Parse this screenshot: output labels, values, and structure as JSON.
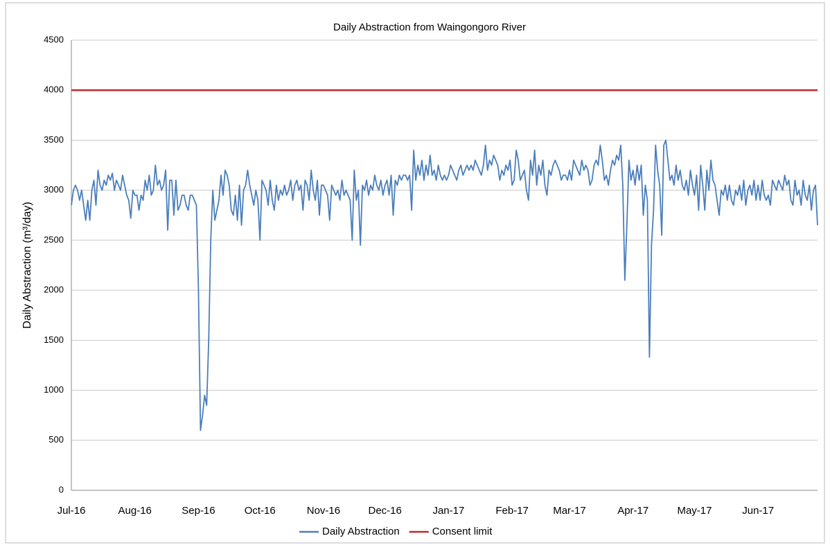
{
  "chart_data": {
    "type": "line",
    "title": "Daily Abstraction from Waingongoro River",
    "y_label": "Daily Abstraction (m³/day)",
    "categories": [
      "Jul-16",
      null,
      null,
      null,
      null,
      null,
      null,
      null,
      null,
      null,
      null,
      null,
      null,
      null,
      null,
      null,
      null,
      null,
      null,
      null,
      null,
      null,
      null,
      null,
      null,
      null,
      null,
      null,
      null,
      null,
      null,
      "Aug-16",
      null,
      null,
      null,
      null,
      null,
      null,
      null,
      null,
      null,
      null,
      null,
      null,
      null,
      null,
      null,
      null,
      null,
      null,
      null,
      null,
      null,
      null,
      null,
      null,
      null,
      null,
      null,
      null,
      null,
      null,
      "Sep-16",
      null,
      null,
      null,
      null,
      null,
      null,
      null,
      null,
      null,
      null,
      null,
      null,
      null,
      null,
      null,
      null,
      null,
      null,
      null,
      null,
      null,
      null,
      null,
      null,
      null,
      null,
      null,
      null,
      null,
      "Oct-16",
      null,
      null,
      null,
      null,
      null,
      null,
      null,
      null,
      null,
      null,
      null,
      null,
      null,
      null,
      null,
      null,
      null,
      null,
      null,
      null,
      null,
      null,
      null,
      null,
      null,
      null,
      null,
      null,
      null,
      null,
      "Nov-16",
      null,
      null,
      null,
      null,
      null,
      null,
      null,
      null,
      null,
      null,
      null,
      null,
      null,
      null,
      null,
      null,
      null,
      null,
      null,
      null,
      null,
      null,
      null,
      null,
      null,
      null,
      null,
      null,
      null,
      "Dec-16",
      null,
      null,
      null,
      null,
      null,
      null,
      null,
      null,
      null,
      null,
      null,
      null,
      null,
      null,
      null,
      null,
      null,
      null,
      null,
      null,
      null,
      null,
      null,
      null,
      null,
      null,
      null,
      null,
      null,
      null,
      "Jan-17",
      null,
      null,
      null,
      null,
      null,
      null,
      null,
      null,
      null,
      null,
      null,
      null,
      null,
      null,
      null,
      null,
      null,
      null,
      null,
      null,
      null,
      null,
      null,
      null,
      null,
      null,
      null,
      null,
      null,
      null,
      "Feb-17",
      null,
      null,
      null,
      null,
      null,
      null,
      null,
      null,
      null,
      null,
      null,
      null,
      null,
      null,
      null,
      null,
      null,
      null,
      null,
      null,
      null,
      null,
      null,
      null,
      null,
      null,
      null,
      "Mar-17",
      null,
      null,
      null,
      null,
      null,
      null,
      null,
      null,
      null,
      null,
      null,
      null,
      null,
      null,
      null,
      null,
      null,
      null,
      null,
      null,
      null,
      null,
      null,
      null,
      null,
      null,
      null,
      null,
      null,
      null,
      "Apr-17",
      null,
      null,
      null,
      null,
      null,
      null,
      null,
      null,
      null,
      null,
      null,
      null,
      null,
      null,
      null,
      null,
      null,
      null,
      null,
      null,
      null,
      null,
      null,
      null,
      null,
      null,
      null,
      null,
      null,
      "May-17",
      null,
      null,
      null,
      null,
      null,
      null,
      null,
      null,
      null,
      null,
      null,
      null,
      null,
      null,
      null,
      null,
      null,
      null,
      null,
      null,
      null,
      null,
      null,
      null,
      null,
      null,
      null,
      null,
      null,
      null,
      "Jun-17",
      null,
      null,
      null,
      null,
      null,
      null,
      null,
      null,
      null,
      null,
      null,
      null,
      null,
      null,
      null,
      null,
      null,
      null,
      null,
      null,
      null,
      null,
      null,
      null,
      null,
      null,
      null,
      null,
      null
    ],
    "series": [
      {
        "name": "Daily Abstraction",
        "color": "#4a7ebb",
        "values": [
          2850,
          3000,
          3050,
          3000,
          2900,
          3000,
          2850,
          2700,
          2900,
          2700,
          3000,
          3100,
          2850,
          3200,
          3050,
          3000,
          3100,
          3050,
          3150,
          3100,
          3170,
          3000,
          3100,
          3050,
          3000,
          3150,
          3050,
          2950,
          2900,
          2720,
          3000,
          2950,
          2950,
          2800,
          2950,
          2900,
          3100,
          3000,
          3150,
          2950,
          3000,
          3250,
          3050,
          3100,
          3000,
          3050,
          3200,
          2600,
          3100,
          3100,
          2750,
          3100,
          2800,
          2850,
          2950,
          2950,
          2850,
          2800,
          2950,
          2950,
          2900,
          2850,
          2000,
          600,
          750,
          950,
          850,
          1500,
          2500,
          3000,
          2700,
          2800,
          2900,
          3150,
          2950,
          3200,
          3150,
          3050,
          2800,
          2750,
          2950,
          2700,
          3050,
          2650,
          3000,
          3050,
          3200,
          3050,
          2950,
          2850,
          3000,
          2900,
          2500,
          3100,
          3050,
          3000,
          2850,
          3100,
          2900,
          2800,
          3050,
          2900,
          3000,
          2950,
          3050,
          2950,
          3000,
          3100,
          2900,
          3050,
          3100,
          3000,
          3050,
          2800,
          3100,
          3050,
          2900,
          3200,
          3000,
          2900,
          3100,
          2750,
          3050,
          3050,
          3000,
          2950,
          2700,
          3050,
          3000,
          2950,
          3000,
          2900,
          3100,
          2950,
          3000,
          2950,
          2900,
          2500,
          3200,
          2900,
          3000,
          2450,
          3050,
          3000,
          3100,
          2950,
          3050,
          3000,
          3150,
          3050,
          3000,
          3100,
          2950,
          3050,
          3100,
          2950,
          3150,
          2750,
          3100,
          3050,
          3150,
          3100,
          3150,
          3150,
          3100,
          3150,
          2800,
          3400,
          3100,
          3250,
          3150,
          3300,
          3100,
          3250,
          3150,
          3350,
          3150,
          3200,
          3100,
          3250,
          3150,
          3100,
          3150,
          3100,
          3150,
          3250,
          3200,
          3150,
          3100,
          3200,
          3250,
          3150,
          3200,
          3250,
          3200,
          3250,
          3200,
          3300,
          3250,
          3200,
          3150,
          3250,
          3450,
          3200,
          3300,
          3250,
          3350,
          3300,
          3250,
          3100,
          3200,
          3150,
          3250,
          3200,
          3300,
          3050,
          3100,
          3400,
          3300,
          3100,
          3150,
          3200,
          3000,
          2900,
          3300,
          3150,
          3400,
          3050,
          3250,
          3150,
          3300,
          3050,
          2950,
          3200,
          3150,
          3250,
          3300,
          3250,
          3200,
          3100,
          3150,
          3150,
          3100,
          3200,
          3100,
          3300,
          3250,
          3200,
          3150,
          3300,
          3200,
          3250,
          3200,
          3050,
          3100,
          3250,
          3300,
          3250,
          3450,
          3300,
          3100,
          3150,
          3050,
          3200,
          3300,
          3250,
          3350,
          3300,
          3450,
          3050,
          2100,
          2650,
          3300,
          3100,
          3200,
          3050,
          3250,
          3100,
          3250,
          2750,
          3050,
          2900,
          1330,
          2450,
          2800,
          3450,
          3200,
          3050,
          2550,
          3450,
          3500,
          3300,
          3100,
          3150,
          3050,
          3250,
          3100,
          3200,
          3050,
          3000,
          3100,
          2950,
          3200,
          3050,
          2950,
          3150,
          2800,
          3250,
          3050,
          2800,
          3200,
          3000,
          3300,
          3100,
          3050,
          2900,
          2750,
          3000,
          2950,
          3050,
          2900,
          3050,
          2900,
          2850,
          3000,
          2950,
          3050,
          2900,
          3100,
          2850,
          3000,
          3050,
          2950,
          3100,
          2900,
          3050,
          2900,
          3100,
          2950,
          2900,
          2950,
          2850,
          3100,
          3050,
          3000,
          3100,
          3050,
          3000,
          3150,
          3050,
          3100,
          2900,
          2850,
          3100,
          2950,
          3000,
          2850,
          3100,
          2950,
          2900,
          3050,
          2800,
          3000,
          3050,
          2650
        ]
      }
    ],
    "hlines": [
      {
        "name": "Consent limit",
        "color": "#c0282d",
        "value": 4000
      }
    ],
    "ylim": [
      0,
      4500
    ],
    "yticks": [
      0,
      500,
      1000,
      1500,
      2000,
      2500,
      3000,
      3500,
      4000,
      4500
    ],
    "grid": true,
    "legend": "bottom"
  }
}
